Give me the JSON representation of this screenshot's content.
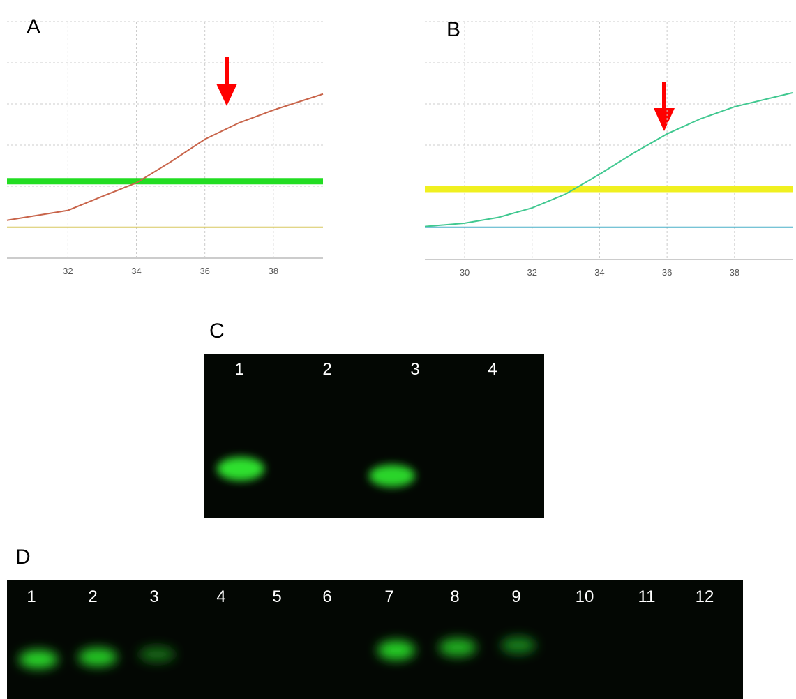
{
  "chart_data": [
    {
      "type": "line",
      "panel": "A",
      "x": [
        30.22,
        32,
        33,
        34,
        35,
        36,
        37,
        38,
        39.45
      ],
      "series": [
        {
          "color": "#c8644a",
          "values": [
            0.17,
            0.41,
            0.75,
            1.08,
            1.59,
            2.14,
            2.54,
            2.85,
            3.24
          ]
        },
        {
          "color": "#d8c860",
          "values": [
            0,
            0,
            0,
            0,
            0,
            0,
            0,
            0,
            0
          ]
        }
      ],
      "threshold": 1.12,
      "threshold_color": "#22dd22",
      "xlim": [
        30.22,
        39.45
      ],
      "xticks": [
        32,
        34,
        36,
        38
      ],
      "ylim": [
        -0.75,
        5
      ],
      "grid": true
    },
    {
      "type": "line",
      "panel": "B",
      "x": [
        28.82,
        30,
        31,
        32,
        33,
        34,
        35,
        36,
        37,
        38,
        39.72
      ],
      "series": [
        {
          "color": "#40c890",
          "values": [
            0.02,
            0.1,
            0.24,
            0.47,
            0.81,
            1.29,
            1.8,
            2.27,
            2.64,
            2.93,
            3.27
          ]
        },
        {
          "color": "#4ab0c8",
          "values": [
            0,
            0,
            0,
            0,
            0,
            0,
            0,
            0,
            0,
            0,
            0
          ]
        }
      ],
      "threshold": 0.93,
      "threshold_color": "#f0f020",
      "xlim": [
        28.82,
        39.72
      ],
      "xticks": [
        30,
        32,
        34,
        36,
        38
      ],
      "ylim": [
        -0.75,
        5
      ],
      "grid": true
    }
  ],
  "gels": [
    {
      "panel": "C",
      "lanes": [
        "1",
        "2",
        "3",
        "4"
      ]
    },
    {
      "panel": "D",
      "lanes": [
        "1",
        "2",
        "3",
        "4",
        "5",
        "6",
        "7",
        "8",
        "9",
        "10",
        "11",
        "12"
      ]
    }
  ]
}
